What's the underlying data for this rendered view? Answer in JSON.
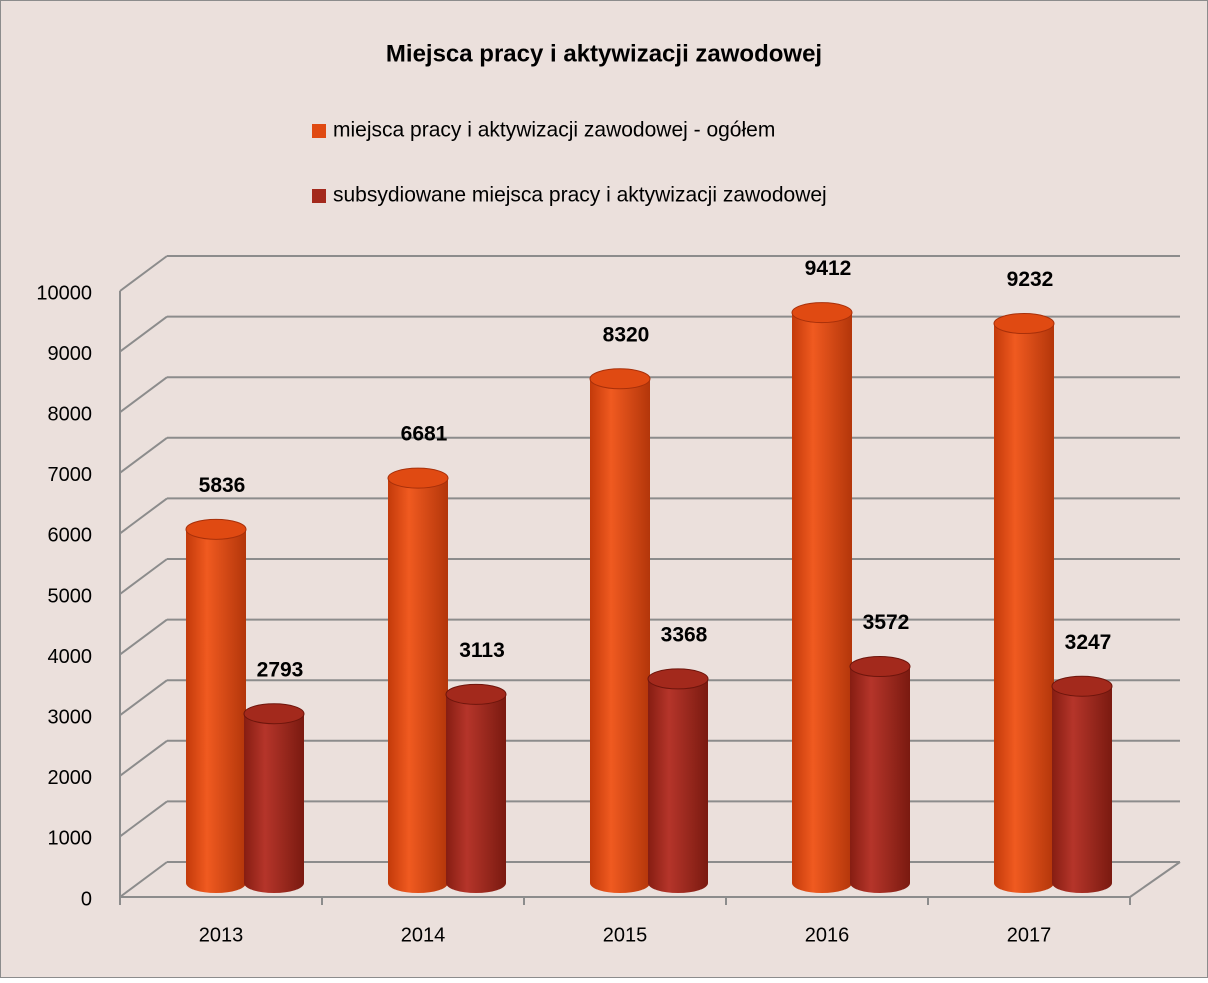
{
  "chart_data": {
    "type": "bar3d",
    "title": "Miejsca pracy i aktywizacji zawodowej",
    "categories": [
      "2013",
      "2014",
      "2015",
      "2016",
      "2017"
    ],
    "series": [
      {
        "name": "miejsca pracy i aktywizacji zawodowej - ogółem",
        "color": "#e04a12",
        "values": [
          5836,
          6681,
          8320,
          9412,
          9232
        ]
      },
      {
        "name": "subsydiowane miejsca pracy i aktywizacji zawodowej",
        "color": "#a3291c",
        "values": [
          2793,
          3113,
          3368,
          3572,
          3247
        ]
      }
    ],
    "ylim": [
      0,
      10000
    ],
    "yticks": [
      0,
      1000,
      2000,
      3000,
      4000,
      5000,
      6000,
      7000,
      8000,
      9000,
      10000
    ],
    "grid": true,
    "legend": "top"
  }
}
